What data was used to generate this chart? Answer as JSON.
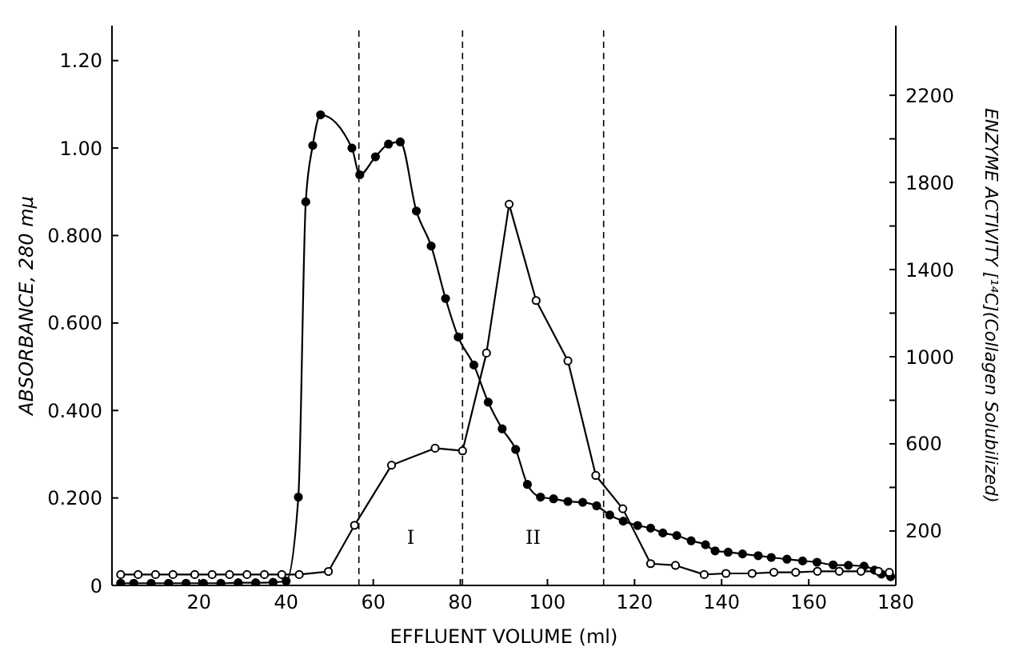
{
  "chart_data": {
    "type": "line",
    "xlabel": "EFFLUENT VOLUME (ml)",
    "ylabel": "ABSORBANCE, 280 mμ",
    "y2label": "ENZYME ACTIVITY [¹⁴C](Collagen Solubilized)",
    "xlim": [
      0,
      180
    ],
    "xticks": [
      20,
      40,
      60,
      80,
      100,
      120,
      140,
      160,
      180
    ],
    "ylim": [
      0,
      1.28
    ],
    "yticks": [
      {
        "value": 0,
        "label": "0"
      },
      {
        "value": 0.2,
        "label": "0.200"
      },
      {
        "value": 0.4,
        "label": "0.400"
      },
      {
        "value": 0.6,
        "label": "0.600"
      },
      {
        "value": 0.8,
        "label": "0.800"
      },
      {
        "value": 1.0,
        "label": "1.00"
      },
      {
        "value": 1.2,
        "label": "1.20"
      }
    ],
    "y2lim": [
      -50,
      2520
    ],
    "y2ticks": [
      200,
      {
        "value": 400,
        "label": null
      },
      600,
      {
        "value": 800,
        "label": null
      },
      1000,
      {
        "value": 1200,
        "label": null
      },
      1400,
      {
        "value": 1600,
        "label": null
      },
      1800,
      {
        "value": 2000,
        "label": null
      },
      2200
    ],
    "marker": "circle",
    "series": [
      {
        "color": "#000000",
        "x": [
          2,
          5,
          9,
          13,
          17,
          21,
          25,
          29,
          33,
          37,
          40,
          42.8,
          44.5,
          46.1,
          47.9,
          55.1,
          56.9,
          60.5,
          63.5,
          66.2,
          69.9,
          73.3,
          76.6,
          79.5,
          83.1,
          86.4,
          89.6,
          92.7,
          95.4,
          98.4,
          101.4,
          104.7,
          108.1,
          111.3,
          114.3,
          117.4,
          120.7,
          123.7,
          126.5,
          129.7,
          133,
          136.3,
          138.5,
          141.5,
          144.8,
          148.4,
          151.4,
          155,
          158.6,
          161.9,
          165.6,
          169.1,
          172.7,
          175.1,
          176.7,
          178.8
        ],
        "values": [
          0.005,
          0.005,
          0.005,
          0.005,
          0.005,
          0.005,
          0.005,
          0.006,
          0.006,
          0.007,
          0.01,
          0.202,
          0.877,
          1.006,
          1.076,
          1.0,
          0.939,
          0.98,
          1.009,
          1.014,
          0.856,
          0.776,
          0.656,
          0.568,
          0.504,
          0.419,
          0.358,
          0.311,
          0.231,
          0.202,
          0.198,
          0.192,
          0.19,
          0.182,
          0.161,
          0.147,
          0.137,
          0.131,
          0.12,
          0.114,
          0.102,
          0.093,
          0.079,
          0.076,
          0.072,
          0.068,
          0.064,
          0.06,
          0.056,
          0.053,
          0.047,
          0.046,
          0.044,
          0.035,
          0.026,
          0.02
        ]
      },
      {
        "color": "#000000",
        "axis": "y2",
        "x": [
          2,
          6,
          10,
          14,
          19,
          23,
          27,
          31,
          35,
          39,
          43,
          49.7,
          55.7,
          64.2,
          74.2,
          80.5,
          86,
          91.2,
          97.4,
          104.7,
          111.1,
          117.3,
          123.7,
          129.4,
          136,
          141,
          147,
          152,
          157,
          162,
          167,
          172,
          176,
          178.5
        ],
        "values": [
          0,
          0,
          0,
          0,
          0,
          0,
          0,
          0,
          0,
          0,
          0,
          14,
          226,
          502,
          580,
          568,
          1017,
          1700,
          1258,
          981,
          455,
          302,
          50,
          42,
          0,
          5,
          5,
          10,
          10,
          15,
          15,
          15,
          15,
          10
        ]
      }
    ],
    "ref_lines": [
      {
        "axis": "x",
        "value": 56.7,
        "line_style": "dashed"
      },
      {
        "axis": "x",
        "value": 80.5,
        "line_style": "dashed"
      },
      {
        "axis": "x",
        "value": 112.9,
        "line_style": "dashed"
      }
    ],
    "annotations": [
      "I",
      "II"
    ]
  }
}
